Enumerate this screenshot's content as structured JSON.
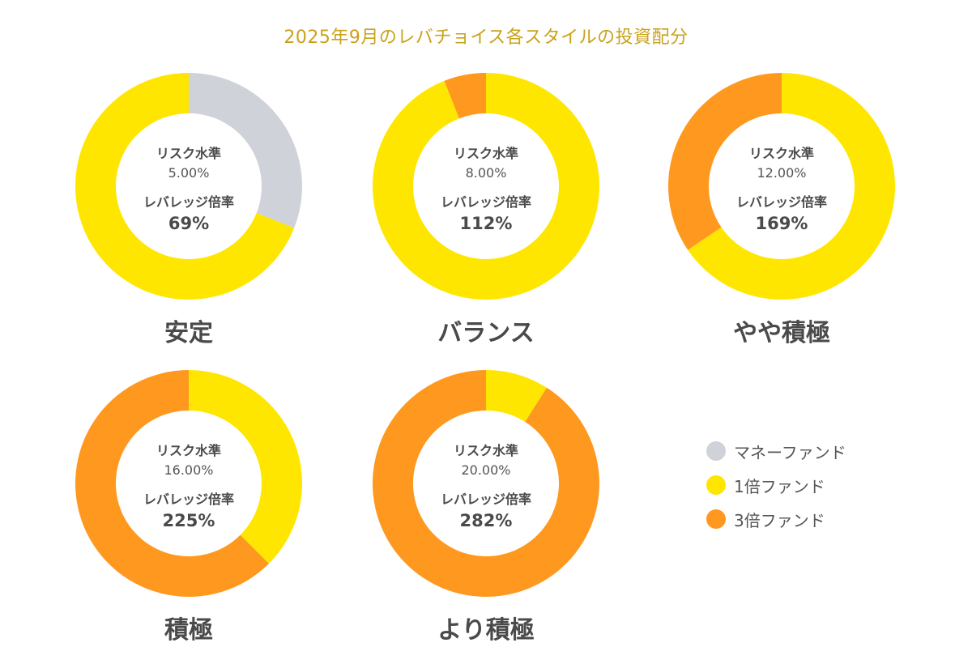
{
  "title": "2025年9月のレバチョイス各スタイルの投資配分",
  "colors": {
    "money": "#CFD2D8",
    "fund1x": "#FFE600",
    "fund3x": "#FF981F",
    "title": "#C9A21A",
    "text": "#4A4A4A"
  },
  "center_labels": {
    "risk": "リスク水準",
    "leverage": "レバレッジ倍率"
  },
  "legend": [
    {
      "key": "money",
      "label": "マネーファンド"
    },
    {
      "key": "fund1x",
      "label": "1倍ファンド"
    },
    {
      "key": "fund3x",
      "label": "3倍ファンド"
    }
  ],
  "chart_data": {
    "type": "pie",
    "variant": "donut",
    "title": "2025年9月のレバチョイス各スタイルの投資配分",
    "series_names": [
      "マネーファンド",
      "1倍ファンド",
      "3倍ファンド"
    ],
    "charts": [
      {
        "name": "安定",
        "risk_level": "5.00%",
        "leverage": "69%",
        "slices": [
          {
            "key": "money",
            "label": "マネーファンド",
            "value": 31
          },
          {
            "key": "fund1x",
            "label": "1倍ファンド",
            "value": 69
          }
        ]
      },
      {
        "name": "バランス",
        "risk_level": "8.00%",
        "leverage": "112%",
        "slices": [
          {
            "key": "fund1x",
            "label": "1倍ファンド",
            "value": 94
          },
          {
            "key": "fund3x",
            "label": "3倍ファンド",
            "value": 6
          }
        ]
      },
      {
        "name": "やや積極",
        "risk_level": "12.00%",
        "leverage": "169%",
        "slices": [
          {
            "key": "fund1x",
            "label": "1倍ファンド",
            "value": 65.5
          },
          {
            "key": "fund3x",
            "label": "3倍ファンド",
            "value": 34.5
          }
        ]
      },
      {
        "name": "積極",
        "risk_level": "16.00%",
        "leverage": "225%",
        "slices": [
          {
            "key": "fund1x",
            "label": "1倍ファンド",
            "value": 37.5
          },
          {
            "key": "fund3x",
            "label": "3倍ファンド",
            "value": 62.5
          }
        ]
      },
      {
        "name": "より積極",
        "risk_level": "20.00%",
        "leverage": "282%",
        "slices": [
          {
            "key": "fund1x",
            "label": "1倍ファンド",
            "value": 9
          },
          {
            "key": "fund3x",
            "label": "3倍ファンド",
            "value": 91
          }
        ]
      }
    ]
  }
}
